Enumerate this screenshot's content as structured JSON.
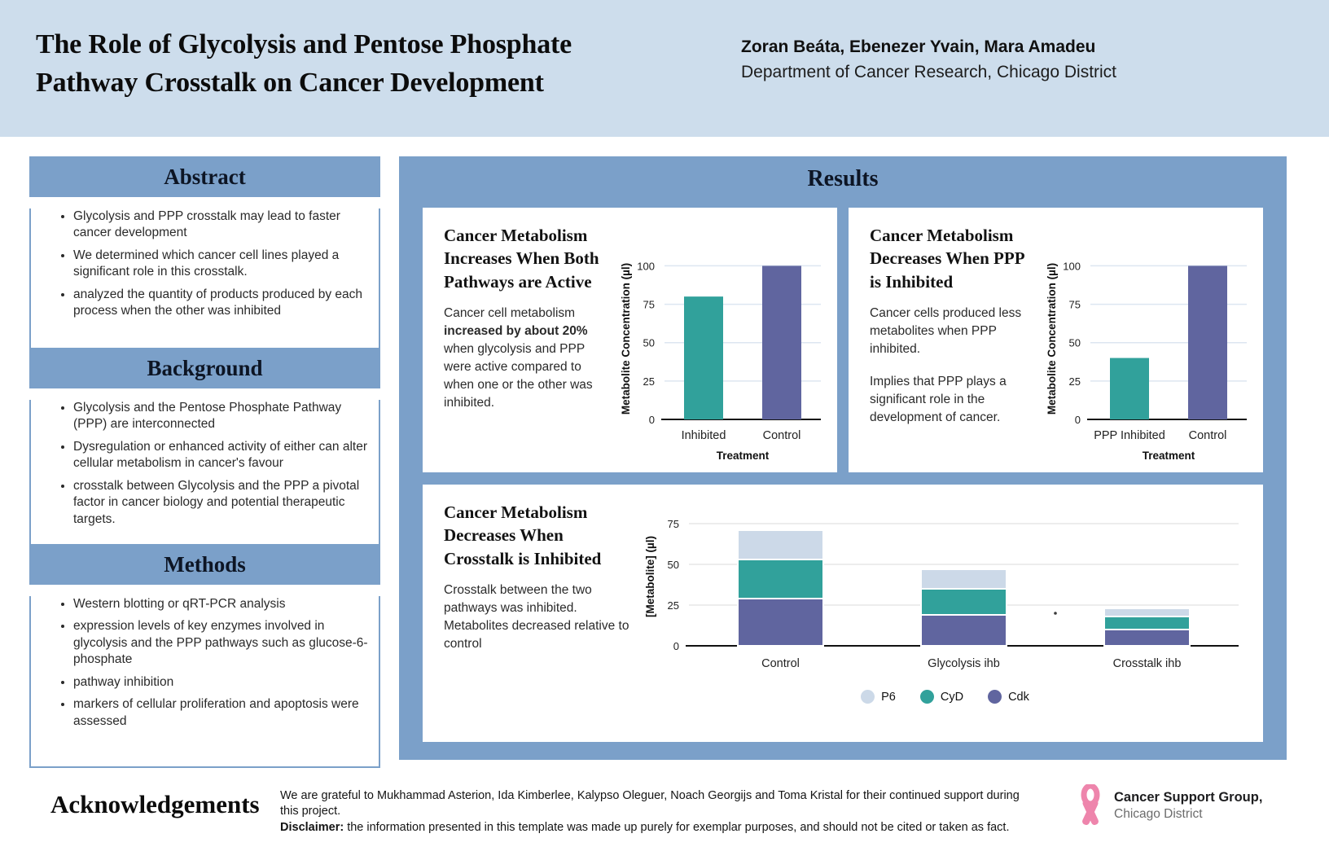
{
  "header": {
    "title": "The Role of Glycolysis and Pentose Phosphate Pathway Crosstalk on Cancer Development",
    "authors": "Zoran Beáta, Ebenezer Yvain, Mara Amadeu",
    "affiliation": "Department of Cancer Research, Chicago District"
  },
  "sections": [
    {
      "title": "Abstract",
      "bullets": [
        "Glycolysis and PPP crosstalk may lead to faster cancer development",
        "We determined which cancer cell lines played a significant role in this crosstalk.",
        "analyzed the quantity of products produced by each process when the other was inhibited"
      ]
    },
    {
      "title": "Background",
      "bullets": [
        "Glycolysis and the Pentose Phosphate Pathway (PPP) are interconnected",
        "Dysregulation or enhanced activity of either can alter cellular metabolism  in cancer's favour",
        "crosstalk between Glycolysis and the PPP a pivotal factor in cancer biology and potential therapeutic targets."
      ]
    },
    {
      "title": "Methods",
      "bullets": [
        "Western blotting or qRT-PCR analysis",
        "expression levels of key enzymes involved in glycolysis and the PPP pathways such as glucose-6-phosphate",
        "pathway inhibition",
        "markers of cellular proliferation and apoptosis were assessed"
      ]
    }
  ],
  "results": {
    "title": "Results",
    "cards": [
      {
        "title": "Cancer Metabolism Increases When Both Pathways are Active",
        "body_pre": "Cancer cell metabolism ",
        "body_bold": "increased by about 20%",
        "body_post": " when glycolysis and PPP were active compared to when one or the other was inhibited."
      },
      {
        "title": "Cancer Metabolism Decreases When PPP is Inhibited",
        "para1": "Cancer cells produced less metabolites when PPP inhibited.",
        "para2": "Implies that PPP plays a significant role in the development of cancer."
      },
      {
        "title": "Cancer Metabolism Decreases When Crosstalk is Inhibited",
        "para1": "Crosstalk between the two pathways was inhibited. Metabolites decreased relative to control"
      }
    ]
  },
  "chart_data": [
    {
      "type": "bar",
      "categories": [
        "Inhibited",
        "Control"
      ],
      "values": [
        80,
        100
      ],
      "colors": [
        "#31a19b",
        "#60659f"
      ],
      "ylabel": "Metabolite Concentration (µl)",
      "xlabel": "Treatment",
      "yticks": [
        0,
        25,
        50,
        75,
        100
      ],
      "ylim": [
        0,
        105
      ],
      "grid": true,
      "legend_position": "none"
    },
    {
      "type": "bar",
      "categories": [
        "PPP Inhibited",
        "Control"
      ],
      "values": [
        40,
        100
      ],
      "colors": [
        "#31a19b",
        "#60659f"
      ],
      "ylabel": "Metabolite Concentration (µl)",
      "xlabel": "Treatment",
      "yticks": [
        0,
        25,
        50,
        75,
        100
      ],
      "ylim": [
        0,
        105
      ],
      "grid": true,
      "legend_position": "none"
    },
    {
      "type": "stacked-bar",
      "categories": [
        "Control",
        "Glycolysis ihb",
        "Crosstalk ihb"
      ],
      "series": [
        {
          "name": "Cdk",
          "color": "#60659f",
          "values": [
            29,
            19,
            10
          ]
        },
        {
          "name": "CyD",
          "color": "#31a19b",
          "values": [
            24,
            16,
            8
          ]
        },
        {
          "name": "P6",
          "color": "#ccd9e8",
          "values": [
            18,
            12,
            5
          ]
        }
      ],
      "legend": [
        {
          "label": "P6",
          "color": "#ccd9e8"
        },
        {
          "label": "CyD",
          "color": "#31a19b"
        },
        {
          "label": "Cdk",
          "color": "#60659f"
        }
      ],
      "ylabel": "[Metabolite] (µl)",
      "xlabel": "",
      "yticks": [
        0,
        25,
        50,
        75
      ],
      "ylim": [
        0,
        85
      ],
      "grid": true,
      "legend_position": "bottom"
    }
  ],
  "acknowledgements": {
    "title": "Acknowledgements",
    "line1": "We are grateful to Mukhammad Asterion, Ida Kimberlee, Kalypso Oleguer, Noach Georgijs and Toma Kristal for their continued support during this project.",
    "line2_bold": "Disclaimer:",
    "line2_rest": " the information presented in this template was made up purely for exemplar purposes, and should not be cited or taken as fact."
  },
  "logo": {
    "name": "Cancer Support Group,",
    "sub": "Chicago District",
    "ribbon_color": "#ee85ac"
  },
  "colors": {
    "top_band": "#cdddec",
    "panel_blue": "#7ba0c9",
    "teal": "#31a19b",
    "purple": "#60659f",
    "light_blue": "#ccd9e8"
  }
}
